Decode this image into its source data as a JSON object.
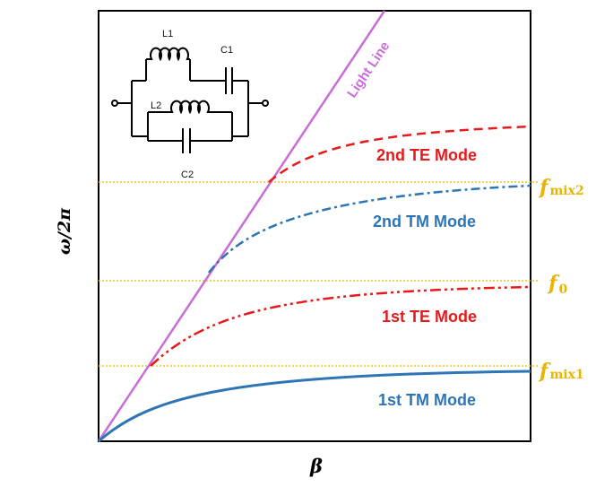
{
  "axes": {
    "x_label": "β",
    "y_label": "ω/2π"
  },
  "light_line": {
    "label": "Light Line",
    "color": "#c86dd7"
  },
  "modes": [
    {
      "label": "1st TM Mode",
      "color": "#2e75b6",
      "style": "solid"
    },
    {
      "label": "1st TE Mode",
      "color": "#e8191b",
      "style": "dash-dot-dot"
    },
    {
      "label": "2nd TM Mode",
      "color": "#2e75b6",
      "style": "dash-dot"
    },
    {
      "label": "2nd TE Mode",
      "color": "#e8191b",
      "style": "dashed"
    }
  ],
  "frequency_lines": [
    {
      "symbol": "f",
      "sub": "mix2"
    },
    {
      "symbol": "f",
      "sub": "0"
    },
    {
      "symbol": "f",
      "sub": "mix1"
    }
  ],
  "frequency_line_color": "#f0c020",
  "circuit": {
    "L1": "L1",
    "C1": "C1",
    "L2": "L2",
    "C2": "C2"
  }
}
